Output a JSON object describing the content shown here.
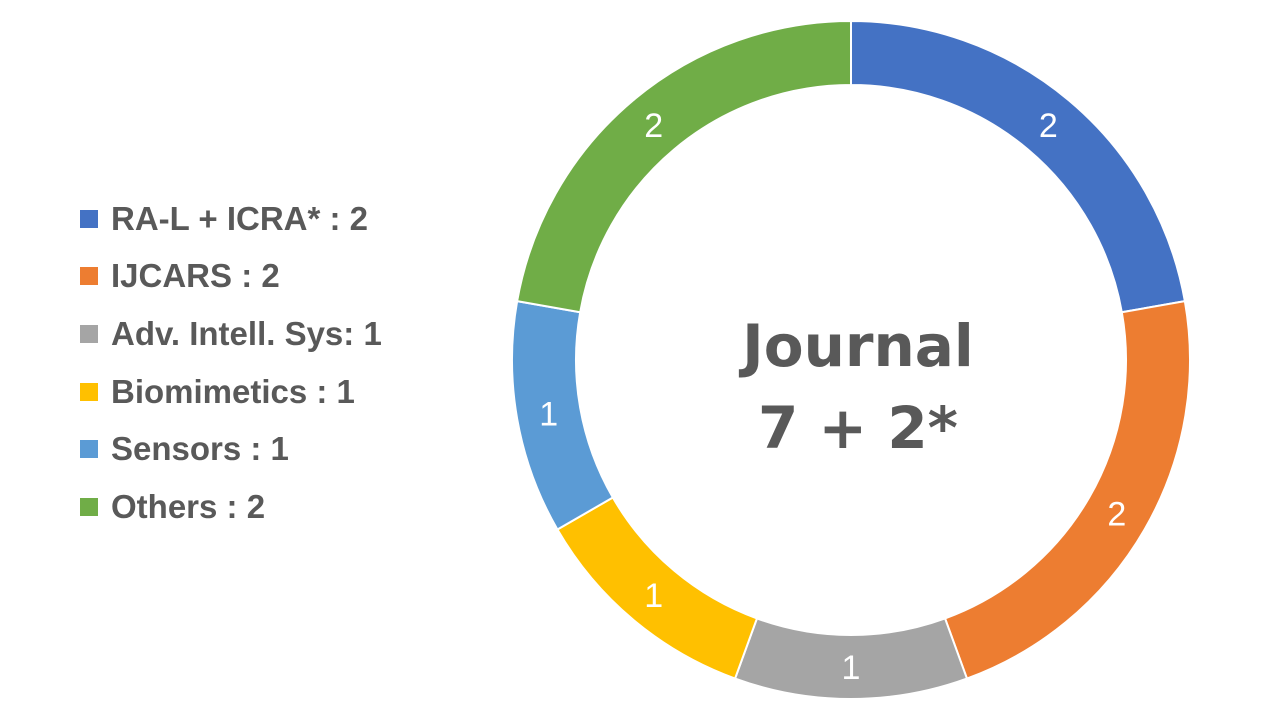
{
  "chart_data": {
    "type": "pie",
    "categories": [
      "RA-L + ICRA*",
      "IJCARS",
      "Adv. Intell. Sys",
      "Biomimetics",
      "Sensors",
      "Others"
    ],
    "values": [
      2,
      2,
      1,
      1,
      1,
      2
    ],
    "colors": [
      "#4472C4",
      "#ED7D31",
      "#A5A5A5",
      "#FFC000",
      "#5B9BD5",
      "#70AD47"
    ],
    "data_labels": [
      "2",
      "2",
      "1",
      "1",
      "1",
      "2"
    ],
    "legend": [
      "RA-L + ICRA* : 2",
      "IJCARS : 2",
      "Adv. Intell. Sys: 1",
      "Biomimetics : 1",
      "Sensors : 1",
      "Others : 2"
    ],
    "legend_position": "left",
    "center_title": "Journal",
    "center_subtitle": "7 + 2*"
  }
}
